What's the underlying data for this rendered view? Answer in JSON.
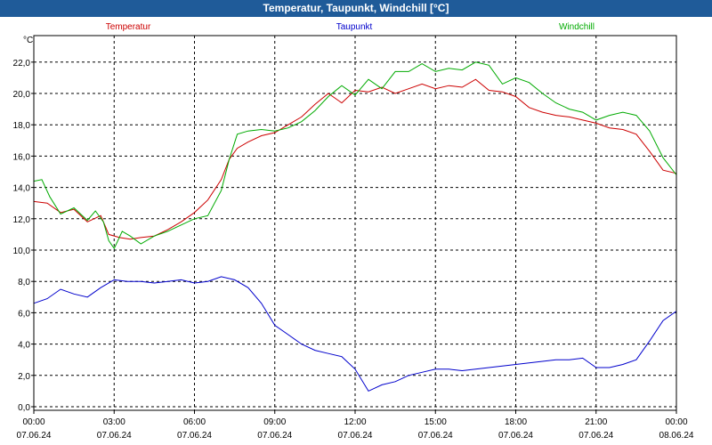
{
  "chart_data": {
    "type": "line",
    "title": "Temperatur, Taupunkt, Windchill [°C]",
    "ylabel": "°C",
    "xlabel": "",
    "ylim": [
      0,
      23
    ],
    "xlim": [
      0,
      24
    ],
    "y_ticks": [
      "0,0",
      "2,0",
      "4,0",
      "6,0",
      "8,0",
      "10,0",
      "12,0",
      "14,0",
      "16,0",
      "18,0",
      "20,0",
      "22,0"
    ],
    "x_ticks": [
      {
        "time": "00:00",
        "date": "07.06.24"
      },
      {
        "time": "03:00",
        "date": "07.06.24"
      },
      {
        "time": "06:00",
        "date": "07.06.24"
      },
      {
        "time": "09:00",
        "date": "07.06.24"
      },
      {
        "time": "12:00",
        "date": "07.06.24"
      },
      {
        "time": "15:00",
        "date": "07.06.24"
      },
      {
        "time": "18:00",
        "date": "07.06.24"
      },
      {
        "time": "21:00",
        "date": "07.06.24"
      },
      {
        "time": "00:00",
        "date": "08.06.24"
      }
    ],
    "grid": true,
    "series": [
      {
        "name": "Temperatur",
        "color": "#cc0000",
        "x": [
          0,
          0.5,
          1,
          1.5,
          2,
          2.5,
          2.8,
          3.2,
          3.6,
          4,
          4.5,
          5,
          5.5,
          6,
          6.5,
          7,
          7.3,
          7.6,
          8,
          8.5,
          9,
          9.5,
          10,
          10.5,
          11,
          11.5,
          12,
          12.5,
          13,
          13.5,
          14,
          14.5,
          15,
          15.5,
          16,
          16.5,
          17,
          17.5,
          18,
          18.5,
          19,
          19.5,
          20,
          20.5,
          21,
          21.5,
          22,
          22.5,
          23,
          23.5,
          24
        ],
        "values": [
          13.1,
          13.0,
          12.4,
          12.6,
          11.8,
          12.2,
          11.0,
          10.8,
          10.7,
          10.8,
          10.9,
          11.3,
          11.8,
          12.4,
          13.2,
          14.5,
          15.8,
          16.5,
          16.9,
          17.3,
          17.5,
          18.0,
          18.5,
          19.3,
          20.0,
          19.4,
          20.2,
          20.1,
          20.4,
          20.0,
          20.3,
          20.6,
          20.3,
          20.5,
          20.4,
          20.9,
          20.2,
          20.1,
          19.8,
          19.1,
          18.8,
          18.6,
          18.5,
          18.3,
          18.1,
          17.8,
          17.7,
          17.4,
          16.3,
          15.1,
          14.9
        ]
      },
      {
        "name": "Taupunkt",
        "color": "#0000cc",
        "x": [
          0,
          0.5,
          1,
          1.5,
          2,
          2.5,
          3,
          3.5,
          4,
          4.5,
          5,
          5.5,
          6,
          6.5,
          7,
          7.5,
          8,
          8.5,
          9,
          9.5,
          10,
          10.5,
          11,
          11.5,
          12,
          12.5,
          13,
          13.5,
          14,
          14.5,
          15,
          15.5,
          16,
          16.5,
          17,
          17.5,
          18,
          18.5,
          19,
          19.5,
          20,
          20.5,
          21,
          21.5,
          22,
          22.5,
          23,
          23.5,
          24
        ],
        "values": [
          6.6,
          6.9,
          7.5,
          7.2,
          7.0,
          7.6,
          8.1,
          8.0,
          8.0,
          7.9,
          8.0,
          8.1,
          7.9,
          8.0,
          8.3,
          8.1,
          7.6,
          6.6,
          5.2,
          4.6,
          4.0,
          3.6,
          3.4,
          3.2,
          2.4,
          1.0,
          1.4,
          1.6,
          2.0,
          2.2,
          2.4,
          2.4,
          2.3,
          2.4,
          2.5,
          2.6,
          2.7,
          2.8,
          2.9,
          3.0,
          3.0,
          3.1,
          2.5,
          2.5,
          2.7,
          3.0,
          4.2,
          5.5,
          6.1
        ]
      },
      {
        "name": "Windchill",
        "color": "#00aa00",
        "x": [
          0,
          0.3,
          0.6,
          1,
          1.5,
          2,
          2.3,
          2.6,
          2.8,
          3.0,
          3.3,
          3.6,
          4,
          4.5,
          5,
          5.5,
          6,
          6.5,
          7,
          7.3,
          7.6,
          8,
          8.5,
          9,
          9.5,
          10,
          10.5,
          11,
          11.5,
          12,
          12.5,
          13,
          13.5,
          14,
          14.5,
          15,
          15.5,
          16,
          16.5,
          17,
          17.5,
          18,
          18.5,
          19,
          19.5,
          20,
          20.5,
          21,
          21.5,
          22,
          22.5,
          23,
          23.5,
          24
        ],
        "values": [
          14.4,
          14.5,
          13.4,
          12.3,
          12.7,
          11.9,
          12.5,
          11.8,
          10.6,
          10.1,
          11.2,
          10.9,
          10.4,
          10.9,
          11.2,
          11.6,
          12.0,
          12.2,
          13.8,
          15.8,
          17.4,
          17.6,
          17.7,
          17.6,
          17.8,
          18.2,
          18.9,
          19.8,
          20.5,
          19.9,
          20.9,
          20.3,
          21.4,
          21.4,
          21.9,
          21.4,
          21.6,
          21.5,
          22.0,
          21.8,
          20.6,
          21.0,
          20.7,
          20.0,
          19.4,
          19.0,
          18.8,
          18.3,
          18.6,
          18.8,
          18.6,
          17.6,
          15.9,
          14.8
        ]
      }
    ]
  }
}
